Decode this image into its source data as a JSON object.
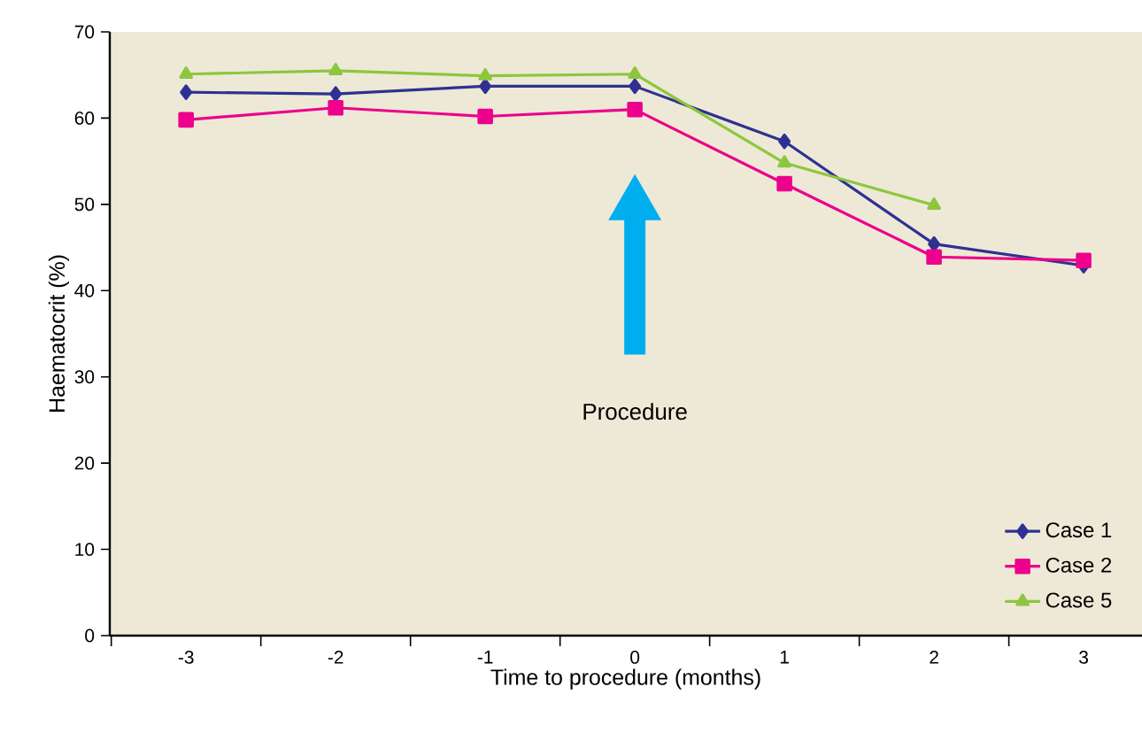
{
  "chart_data": {
    "type": "line",
    "xlabel": "Time to procedure (months)",
    "ylabel": "Haematocrit (%)",
    "categories": [
      "-3",
      "-2",
      "-1",
      "0",
      "1",
      "2",
      "3"
    ],
    "series": [
      {
        "name": "Case 1",
        "color": "#2e3192",
        "marker": "diamond",
        "values": [
          63.0,
          62.8,
          63.7,
          63.7,
          57.3,
          45.4,
          42.9
        ]
      },
      {
        "name": "Case 2",
        "color": "#ec008c",
        "marker": "square",
        "values": [
          59.8,
          61.2,
          60.2,
          61.0,
          52.4,
          43.9,
          43.5
        ]
      },
      {
        "name": "Case 5",
        "color": "#8dc63f",
        "marker": "triangle",
        "values": [
          65.1,
          65.5,
          64.9,
          65.1,
          54.8,
          49.9,
          null
        ]
      }
    ],
    "ylim": [
      0,
      70
    ],
    "yticks": [
      0,
      10,
      20,
      30,
      40,
      50,
      60,
      70
    ],
    "annotations": [
      "Procedure"
    ],
    "legend": "bottom right",
    "grid": false,
    "line_style": "solid"
  }
}
